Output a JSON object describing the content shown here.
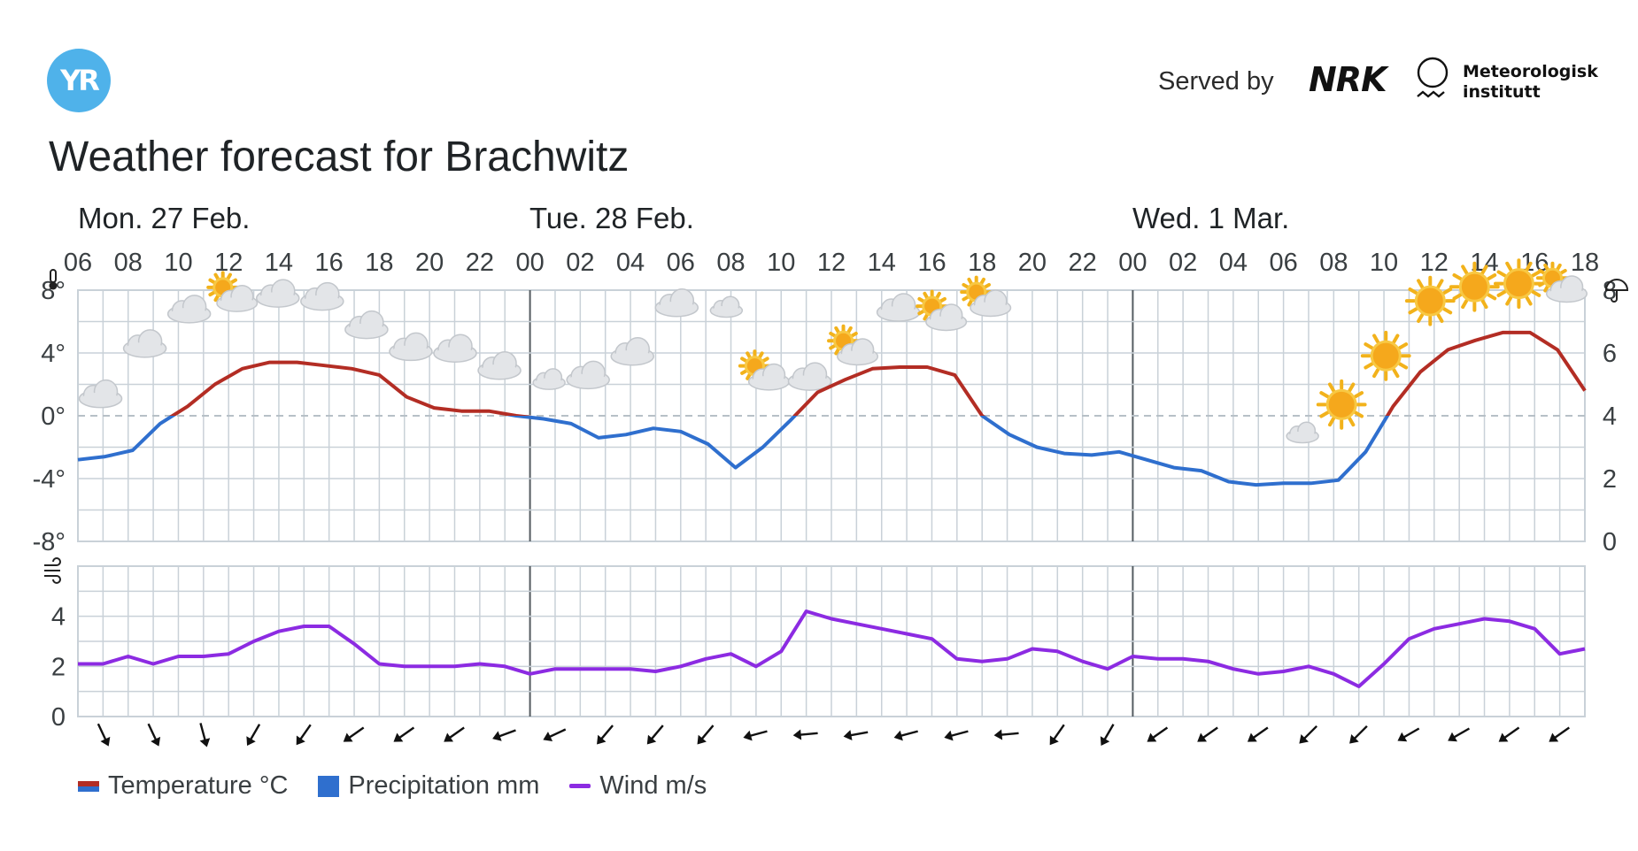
{
  "header": {
    "logo_text": "YR",
    "served_by": "Served by",
    "nrk_logo": "NRK",
    "met_name_line1": "Meteorologisk",
    "met_name_line2": "institutt",
    "title": "Weather forecast for Brachwitz"
  },
  "days": [
    "Mon. 27 Feb.",
    "Tue. 28 Feb.",
    "Wed. 1 Mar."
  ],
  "legend": {
    "temperature": "Temperature °C",
    "precipitation": "Precipitation mm",
    "wind": "Wind m/s"
  },
  "colors": {
    "warm": "#b32d24",
    "cold": "#2f6fce",
    "precip": "#2f6fce",
    "wind": "#8c2be2",
    "grid": "#c9d1d8"
  },
  "chart_data": {
    "type": "line",
    "x_hours": [
      "06",
      "08",
      "10",
      "12",
      "14",
      "16",
      "18",
      "20",
      "22",
      "00",
      "02",
      "04",
      "06",
      "08",
      "10",
      "12",
      "14",
      "16",
      "18",
      "20",
      "22",
      "00",
      "02",
      "04",
      "06",
      "08",
      "10",
      "12",
      "14",
      "16",
      "18"
    ],
    "temperature": {
      "name": "Temperature °C",
      "unit": "°C",
      "ylim": [
        -8,
        8
      ],
      "yticks": [
        "8°",
        "4°",
        "0°",
        "-4°",
        "-8°"
      ],
      "values": [
        -2.8,
        -2.6,
        -2.2,
        -0.5,
        0.6,
        2,
        3,
        3.4,
        3.4,
        3.2,
        3,
        2.6,
        1.2,
        0.5,
        0.3,
        0.3,
        0,
        -0.2,
        -0.5,
        -1.4,
        -1.2,
        -0.8,
        -1,
        -1.8,
        -3.3,
        -2,
        -0.3,
        1.5,
        2.3,
        3,
        3.1,
        3.1,
        2.6,
        0,
        -1.2,
        -2,
        -2.4,
        -2.5,
        -2.3,
        -2.8,
        -3.3,
        -3.5,
        -4.2,
        -4.4,
        -4.3,
        -4.3,
        -4.1,
        -2.3,
        0.6,
        2.8,
        4.2,
        4.8,
        5.3,
        5.3,
        4.2,
        1.6
      ],
      "step_hours": 1
    },
    "precipitation": {
      "name": "Precipitation mm",
      "unit": "mm",
      "ylim": [
        0,
        8
      ],
      "yticks": [
        "8",
        "6",
        "4",
        "2",
        "0"
      ],
      "values": []
    },
    "wind": {
      "name": "Wind m/s",
      "unit": "m/s",
      "ylim": [
        0,
        6
      ],
      "yticks": [
        "4",
        "2",
        "0"
      ],
      "values": [
        2.1,
        2.1,
        2.4,
        2.1,
        2.4,
        2.4,
        2.5,
        3,
        3.4,
        3.6,
        3.6,
        2.9,
        2.1,
        2,
        2,
        2,
        2.1,
        2,
        1.7,
        1.9,
        1.9,
        1.9,
        1.9,
        1.8,
        2,
        2.3,
        2.5,
        2,
        2.6,
        4.2,
        3.9,
        3.7,
        3.5,
        3.3,
        3.1,
        2.3,
        2.2,
        2.3,
        2.7,
        2.6,
        2.2,
        1.9,
        2.4,
        2.3,
        2.3,
        2.2,
        1.9,
        1.7,
        1.8,
        2,
        1.7,
        1.2,
        2.1,
        3.1,
        3.5,
        3.7,
        3.9,
        3.8,
        3.5,
        2.5,
        2.7
      ]
    },
    "weather_icons": [
      "cloud",
      "cloud",
      "cloud",
      "partly-cloudy-day",
      "cloud",
      "cloud",
      "cloud",
      "cloud",
      "cloud",
      "cloud",
      "partly-cloudy-night",
      "cloud",
      "cloud",
      "cloud",
      "partly-cloudy-night",
      "partly-cloudy-day",
      "cloud",
      "partly-cloudy-day",
      "cloud",
      "partly-cloudy-day",
      "partly-cloudy-day",
      "moon",
      "moon",
      "moon",
      "moon",
      "moon",
      "moon",
      "partly-cloudy-night",
      "sun",
      "sun",
      "sun",
      "sun",
      "sun",
      "partly-cloudy-day"
    ],
    "weather_icon_temps": [
      0.3,
      3.5,
      5.7,
      6.6,
      6.7,
      6.5,
      4.7,
      3.3,
      3.2,
      2.1,
      1.6,
      1.5,
      3.0,
      6.1,
      6.2,
      1.6,
      1.4,
      3.2,
      5.8,
      5.4,
      6.3,
      3.1,
      1.0,
      1.0,
      0.2,
      -0.9,
      -1.3,
      -1.8,
      -0.3,
      2.8,
      6.3,
      7.2,
      7.4,
      7.2
    ],
    "wind_dir_deg": [
      335,
      335,
      345,
      30,
      35,
      55,
      55,
      55,
      70,
      65,
      40,
      40,
      40,
      75,
      85,
      80,
      75,
      75,
      85,
      35,
      30,
      55,
      55,
      55,
      45,
      45,
      60,
      60,
      55,
      55
    ]
  }
}
